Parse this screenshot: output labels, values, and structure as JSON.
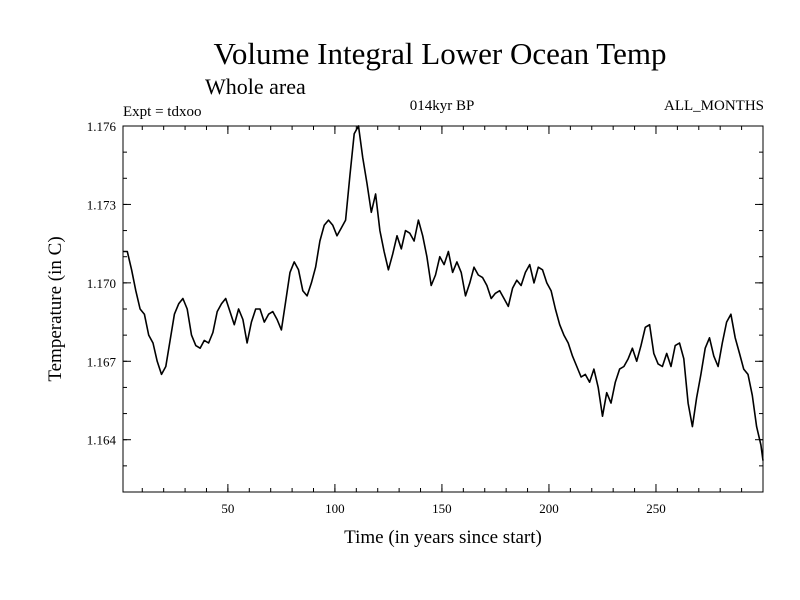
{
  "chart_data": {
    "type": "line",
    "title": "Volume Integral Lower Ocean Temp",
    "subtitle": "Whole area",
    "experiment": "Expt = tdxoo",
    "period": "014kyr BP",
    "months": "ALL_MONTHS",
    "xlabel": "Time (in years since start)",
    "ylabel": "Temperature (in C)",
    "xlim": [
      1,
      300
    ],
    "ylim": [
      1.162,
      1.176
    ],
    "xticks": [
      50,
      100,
      150,
      200,
      250
    ],
    "yticks": [
      1.164,
      1.167,
      1.17,
      1.173,
      1.176
    ],
    "ytick_labels": [
      "1.164",
      "1.167",
      "1.170",
      "1.173",
      "1.176"
    ],
    "grid": false,
    "series": [
      {
        "values": [
          [
            1,
            1.1712
          ],
          [
            3,
            1.1712
          ],
          [
            5,
            1.1705
          ],
          [
            7,
            1.1697
          ],
          [
            9,
            1.169
          ],
          [
            11,
            1.1688
          ],
          [
            13,
            1.168
          ],
          [
            15,
            1.1677
          ],
          [
            17,
            1.167
          ],
          [
            19,
            1.1665
          ],
          [
            21,
            1.1668
          ],
          [
            23,
            1.1678
          ],
          [
            25,
            1.1688
          ],
          [
            27,
            1.1692
          ],
          [
            29,
            1.1694
          ],
          [
            31,
            1.169
          ],
          [
            33,
            1.168
          ],
          [
            35,
            1.1676
          ],
          [
            37,
            1.1675
          ],
          [
            39,
            1.1678
          ],
          [
            41,
            1.1677
          ],
          [
            43,
            1.1681
          ],
          [
            45,
            1.1689
          ],
          [
            47,
            1.1692
          ],
          [
            49,
            1.1694
          ],
          [
            51,
            1.1689
          ],
          [
            53,
            1.1684
          ],
          [
            55,
            1.169
          ],
          [
            57,
            1.1686
          ],
          [
            59,
            1.1677
          ],
          [
            61,
            1.1685
          ],
          [
            63,
            1.169
          ],
          [
            65,
            1.169
          ],
          [
            67,
            1.1685
          ],
          [
            69,
            1.1688
          ],
          [
            71,
            1.1689
          ],
          [
            73,
            1.1686
          ],
          [
            75,
            1.1682
          ],
          [
            77,
            1.1693
          ],
          [
            79,
            1.1704
          ],
          [
            81,
            1.1708
          ],
          [
            83,
            1.1705
          ],
          [
            85,
            1.1697
          ],
          [
            87,
            1.1695
          ],
          [
            89,
            1.17
          ],
          [
            91,
            1.1706
          ],
          [
            93,
            1.1716
          ],
          [
            95,
            1.1722
          ],
          [
            97,
            1.1724
          ],
          [
            99,
            1.1722
          ],
          [
            101,
            1.1718
          ],
          [
            103,
            1.1721
          ],
          [
            105,
            1.1724
          ],
          [
            107,
            1.1741
          ],
          [
            109,
            1.1757
          ],
          [
            111,
            1.176
          ],
          [
            113,
            1.1748
          ],
          [
            115,
            1.1738
          ],
          [
            117,
            1.1727
          ],
          [
            119,
            1.1734
          ],
          [
            121,
            1.172
          ],
          [
            123,
            1.1712
          ],
          [
            125,
            1.1705
          ],
          [
            127,
            1.1711
          ],
          [
            129,
            1.1718
          ],
          [
            131,
            1.1713
          ],
          [
            133,
            1.172
          ],
          [
            135,
            1.1719
          ],
          [
            137,
            1.1716
          ],
          [
            139,
            1.1724
          ],
          [
            141,
            1.1718
          ],
          [
            143,
            1.171
          ],
          [
            145,
            1.1699
          ],
          [
            147,
            1.1703
          ],
          [
            149,
            1.171
          ],
          [
            151,
            1.1707
          ],
          [
            153,
            1.1712
          ],
          [
            155,
            1.1704
          ],
          [
            157,
            1.1708
          ],
          [
            159,
            1.1704
          ],
          [
            161,
            1.1695
          ],
          [
            163,
            1.17
          ],
          [
            165,
            1.1706
          ],
          [
            167,
            1.1703
          ],
          [
            169,
            1.1702
          ],
          [
            171,
            1.1699
          ],
          [
            173,
            1.1694
          ],
          [
            175,
            1.1696
          ],
          [
            177,
            1.1697
          ],
          [
            179,
            1.1694
          ],
          [
            181,
            1.1691
          ],
          [
            183,
            1.1698
          ],
          [
            185,
            1.1701
          ],
          [
            187,
            1.1699
          ],
          [
            189,
            1.1704
          ],
          [
            191,
            1.1707
          ],
          [
            193,
            1.17
          ],
          [
            195,
            1.1706
          ],
          [
            197,
            1.1705
          ],
          [
            199,
            1.17
          ],
          [
            201,
            1.1697
          ],
          [
            203,
            1.169
          ],
          [
            205,
            1.1684
          ],
          [
            207,
            1.168
          ],
          [
            209,
            1.1677
          ],
          [
            211,
            1.1672
          ],
          [
            213,
            1.1668
          ],
          [
            215,
            1.1664
          ],
          [
            217,
            1.1665
          ],
          [
            219,
            1.1662
          ],
          [
            221,
            1.1667
          ],
          [
            223,
            1.166
          ],
          [
            225,
            1.1649
          ],
          [
            227,
            1.1658
          ],
          [
            229,
            1.1654
          ],
          [
            231,
            1.1662
          ],
          [
            233,
            1.1667
          ],
          [
            235,
            1.1668
          ],
          [
            237,
            1.1671
          ],
          [
            239,
            1.1675
          ],
          [
            241,
            1.167
          ],
          [
            243,
            1.1676
          ],
          [
            245,
            1.1683
          ],
          [
            247,
            1.1684
          ],
          [
            249,
            1.1673
          ],
          [
            251,
            1.1669
          ],
          [
            253,
            1.1668
          ],
          [
            255,
            1.1673
          ],
          [
            257,
            1.1668
          ],
          [
            259,
            1.1676
          ],
          [
            261,
            1.1677
          ],
          [
            263,
            1.1671
          ],
          [
            265,
            1.1654
          ],
          [
            267,
            1.1645
          ],
          [
            269,
            1.1656
          ],
          [
            271,
            1.1665
          ],
          [
            273,
            1.1675
          ],
          [
            275,
            1.1679
          ],
          [
            277,
            1.1672
          ],
          [
            279,
            1.1668
          ],
          [
            281,
            1.1677
          ],
          [
            283,
            1.1685
          ],
          [
            285,
            1.1688
          ],
          [
            287,
            1.1679
          ],
          [
            289,
            1.1673
          ],
          [
            291,
            1.1667
          ],
          [
            293,
            1.1665
          ],
          [
            295,
            1.1657
          ],
          [
            297,
            1.1645
          ],
          [
            299,
            1.1638
          ],
          [
            300,
            1.1632
          ]
        ]
      }
    ]
  }
}
